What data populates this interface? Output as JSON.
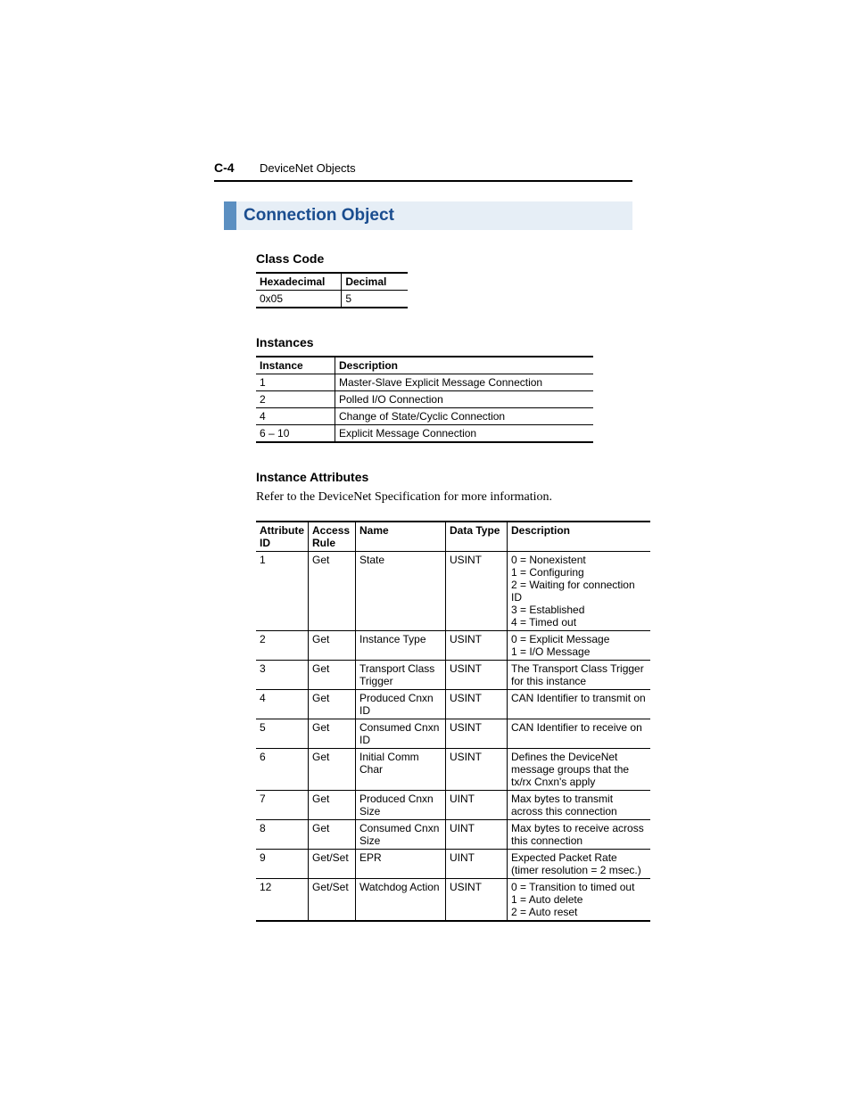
{
  "header": {
    "page_number": "C-4",
    "title": "DeviceNet Objects"
  },
  "section": {
    "title": "Connection Object"
  },
  "class_code": {
    "heading": "Class Code",
    "columns": [
      "Hexadecimal",
      "Decimal"
    ],
    "rows": [
      [
        "0x05",
        "5"
      ]
    ]
  },
  "instances": {
    "heading": "Instances",
    "columns": [
      "Instance",
      "Description"
    ],
    "rows": [
      [
        "1",
        "Master-Slave Explicit Message Connection"
      ],
      [
        "2",
        "Polled I/O Connection"
      ],
      [
        "4",
        "Change of State/Cyclic Connection"
      ],
      [
        "6 – 10",
        "Explicit Message Connection"
      ]
    ]
  },
  "instance_attributes": {
    "heading": "Instance Attributes",
    "note": "Refer to the DeviceNet Specification for more information.",
    "columns": [
      "Attribute ID",
      "Access Rule",
      "Name",
      "Data Type",
      "Description"
    ],
    "rows": [
      [
        "1",
        "Get",
        "State",
        "USINT",
        "0 = Nonexistent\n1 = Configuring\n2 = Waiting for connection ID\n3 = Established\n4 = Timed out"
      ],
      [
        "2",
        "Get",
        "Instance Type",
        "USINT",
        "0 = Explicit Message\n1 = I/O Message"
      ],
      [
        "3",
        "Get",
        "Transport Class Trigger",
        "USINT",
        "The Transport Class Trigger for this instance"
      ],
      [
        "4",
        "Get",
        "Produced Cnxn ID",
        "USINT",
        "CAN Identifier to transmit on"
      ],
      [
        "5",
        "Get",
        "Consumed Cnxn ID",
        "USINT",
        "CAN Identifier to receive on"
      ],
      [
        "6",
        "Get",
        "Initial Comm Char",
        "USINT",
        "Defines the DeviceNet message groups that the tx/rx Cnxn's apply"
      ],
      [
        "7",
        "Get",
        "Produced Cnxn Size",
        "UINT",
        "Max bytes to transmit across this connection"
      ],
      [
        "8",
        "Get",
        "Consumed Cnxn Size",
        "UINT",
        "Max bytes to receive across this connection"
      ],
      [
        "9",
        "Get/Set",
        "EPR",
        "UINT",
        "Expected Packet Rate\n(timer resolution = 2 msec.)"
      ],
      [
        "12",
        "Get/Set",
        "Watchdog Action",
        "USINT",
        "0 = Transition to timed out\n1 = Auto delete\n2 = Auto reset"
      ]
    ]
  }
}
